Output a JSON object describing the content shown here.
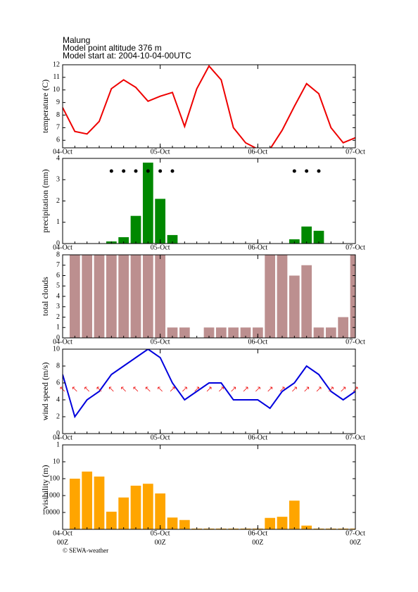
{
  "header": {
    "lines": [
      "Malung",
      "Model point altitude  376 m",
      "Model start at: 2004-10-04-00UTC"
    ]
  },
  "chart_data": [
    {
      "type": "line",
      "ylabel": "temperature (C)",
      "color": "#ee0000",
      "x": [
        0,
        3,
        6,
        9,
        12,
        15,
        18,
        21,
        24,
        27,
        30,
        33,
        36,
        39,
        42,
        45,
        48,
        51,
        54,
        57,
        60,
        63,
        66,
        69,
        72
      ],
      "values": [
        8.6,
        6.7,
        6.5,
        7.5,
        10.1,
        10.8,
        10.2,
        9.1,
        9.5,
        9.8,
        7.1,
        10.1,
        11.9,
        10.8,
        7.0,
        5.8,
        5.3,
        5.3,
        6.8,
        8.7,
        10.5,
        9.7,
        7.0,
        5.8,
        6.2
      ],
      "xlim": [
        0,
        72
      ],
      "xticks": [
        {
          "value": 0,
          "label": "04-Oct"
        },
        {
          "value": 24,
          "label": "05-Oct"
        },
        {
          "value": 48,
          "label": "06-Oct"
        },
        {
          "value": 72,
          "label": "07-Oct"
        }
      ],
      "ylim": [
        5.4,
        12
      ],
      "yticks": [
        6,
        7,
        8,
        9,
        10,
        11,
        12
      ]
    },
    {
      "type": "bar",
      "ylabel": "precipitation (mm)",
      "color": "#008800",
      "x": [
        12,
        15,
        18,
        21,
        24,
        27,
        57,
        60,
        63
      ],
      "values": [
        0.1,
        0.3,
        1.3,
        3.8,
        2.1,
        0.4,
        0.2,
        0.8,
        0.6
      ],
      "xlim": [
        0,
        72
      ],
      "xticks": [
        {
          "value": 0,
          "label": "04-Oct"
        },
        {
          "value": 24,
          "label": "05-Oct"
        },
        {
          "value": 48,
          "label": "06-Oct"
        },
        {
          "value": 72,
          "label": "07-Oct"
        }
      ],
      "ylim": [
        0,
        4
      ],
      "yticks": [
        0,
        1,
        2,
        3,
        4
      ]
    },
    {
      "type": "bar",
      "ylabel": "total clouds",
      "color": "#bc8f8f",
      "x": [
        3,
        6,
        9,
        12,
        15,
        18,
        21,
        24,
        27,
        30,
        33,
        36,
        39,
        42,
        45,
        48,
        51,
        54,
        57,
        60,
        63,
        66,
        69,
        72
      ],
      "values": [
        8,
        8,
        8,
        8,
        8,
        8,
        8,
        8,
        1,
        1,
        0,
        1,
        1,
        1,
        1,
        1,
        8,
        8,
        6,
        7,
        1,
        1,
        2,
        8
      ],
      "xlim": [
        0,
        72
      ],
      "xticks": [
        {
          "value": 0,
          "label": "04-Oct"
        },
        {
          "value": 24,
          "label": "05-Oct"
        },
        {
          "value": 48,
          "label": "06-Oct"
        },
        {
          "value": 72,
          "label": "07-Oct"
        }
      ],
      "ylim": [
        0,
        8
      ],
      "yticks": [
        0,
        1,
        2,
        3,
        4,
        5,
        6,
        7,
        8
      ]
    },
    {
      "type": "line",
      "ylabel": "wind speed (m/s)",
      "color": "#0000dd",
      "arrows": true,
      "x": [
        0,
        3,
        6,
        9,
        12,
        15,
        18,
        21,
        24,
        27,
        30,
        33,
        36,
        39,
        42,
        45,
        48,
        51,
        54,
        57,
        60,
        63,
        66,
        69,
        72
      ],
      "values": [
        7,
        2,
        4,
        5,
        7,
        8,
        9,
        10,
        9,
        6,
        4,
        5,
        6,
        6,
        4,
        4,
        4,
        3,
        5,
        6,
        8,
        7,
        5,
        4,
        5
      ],
      "xlim": [
        0,
        72
      ],
      "xticks": [
        {
          "value": 0,
          "label": "04-Oct"
        },
        {
          "value": 24,
          "label": "05-Oct"
        },
        {
          "value": 48,
          "label": "06-Oct"
        },
        {
          "value": 72,
          "label": "07-Oct"
        }
      ],
      "ylim": [
        0,
        10
      ],
      "yticks": [
        0,
        2,
        4,
        6,
        8,
        10
      ]
    },
    {
      "type": "bar",
      "ylabel": "visibility (m)",
      "color": "#ffa500",
      "log_scale": true,
      "y_inverted": true,
      "x": [
        3,
        6,
        9,
        12,
        15,
        18,
        21,
        24,
        27,
        30,
        33,
        36,
        39,
        42,
        45,
        48,
        51,
        54,
        57,
        60,
        63,
        66,
        69,
        72
      ],
      "values": [
        100,
        38,
        75,
        9000,
        1300,
        260,
        200,
        750,
        20000,
        28000,
        90000,
        90000,
        90000,
        90000,
        90000,
        90000,
        21000,
        18000,
        2000,
        60000,
        90000,
        90000,
        90000,
        90000
      ],
      "xlim": [
        0,
        72
      ],
      "xticks": [
        {
          "value": 0,
          "label": "04-Oct"
        },
        {
          "value": 24,
          "label": "05-Oct"
        },
        {
          "value": 48,
          "label": "06-Oct"
        },
        {
          "value": 72,
          "label": "07-Oct"
        }
      ],
      "ylim": [
        1,
        100000
      ],
      "yticks": [
        1,
        10,
        100,
        1000,
        10000
      ]
    }
  ],
  "footer": {
    "hour_labels": [
      "00Z",
      "00Z",
      "00Z",
      "00Z"
    ],
    "credit": "© SEWA-weather"
  }
}
